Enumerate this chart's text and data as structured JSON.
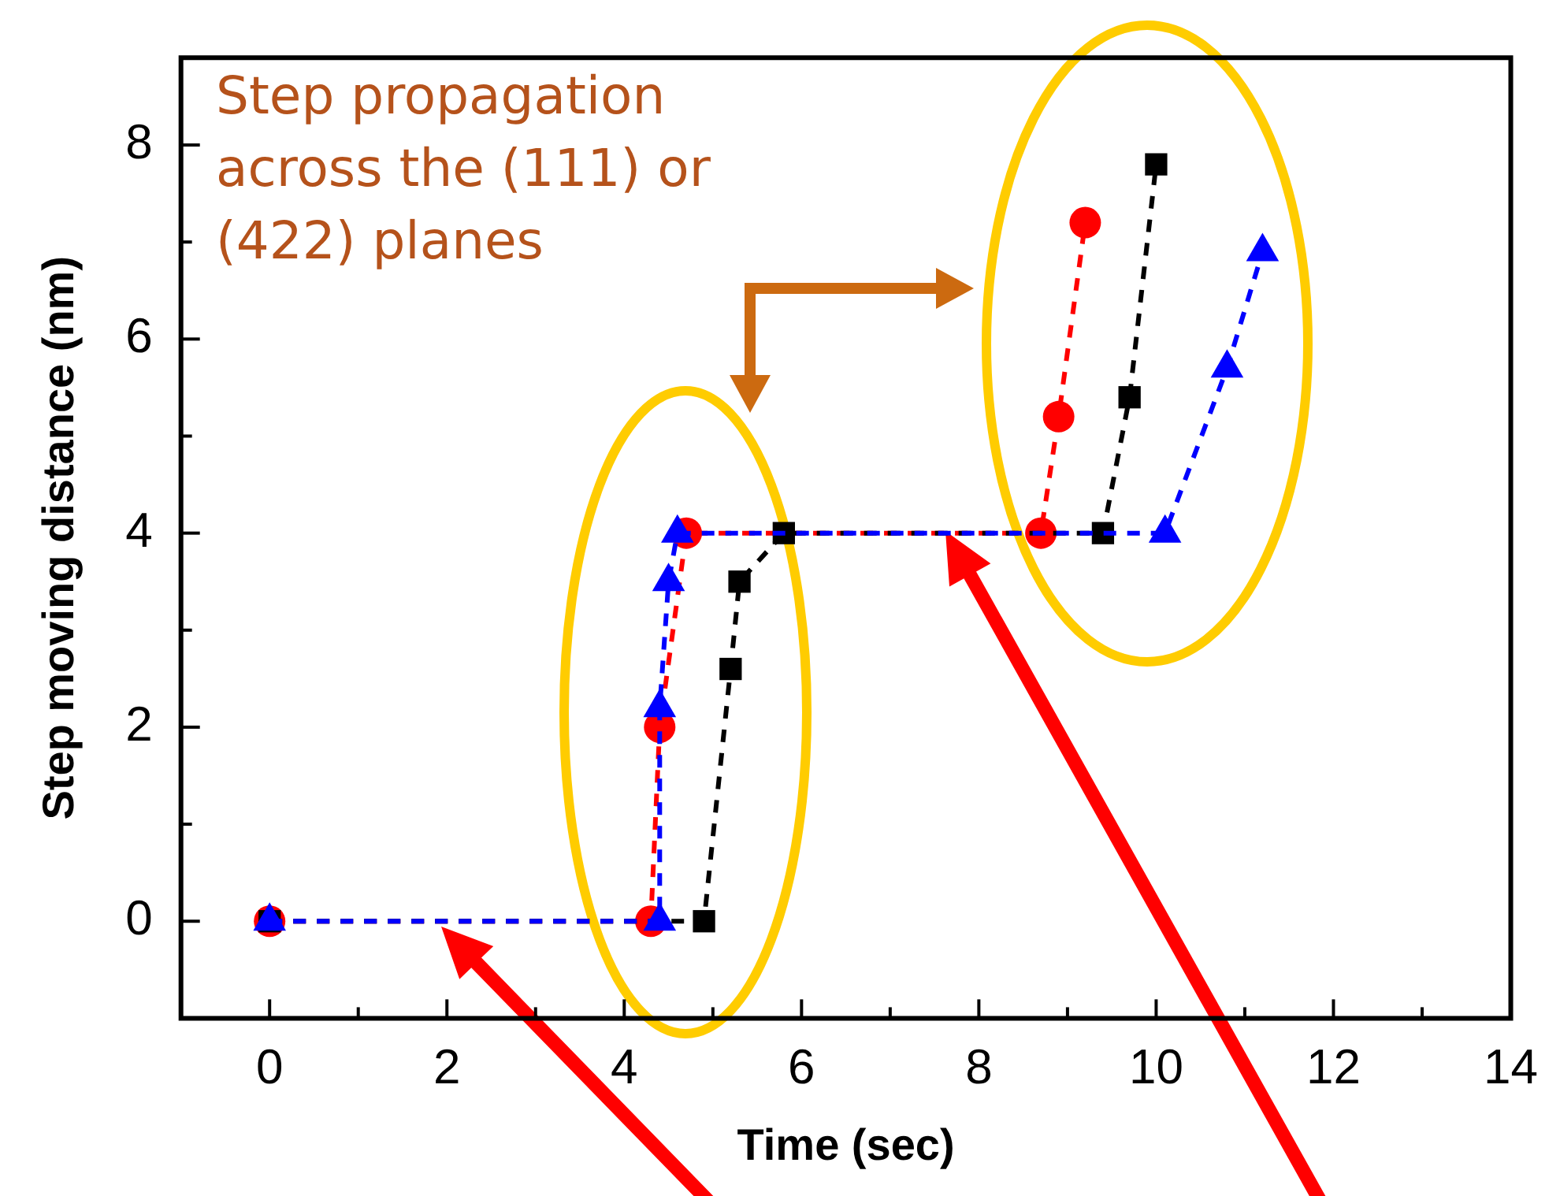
{
  "chart_data": {
    "type": "line",
    "xlabel": "Time (sec)",
    "ylabel": "Step moving distance (nm)",
    "annotations": [
      "Step propagation across the (111) or (422) planes"
    ],
    "xlim": [
      -1,
      14
    ],
    "xticks": [
      {
        "value": -1,
        "label": null
      },
      0,
      {
        "value": 1,
        "label": null
      },
      2,
      {
        "value": 3,
        "label": null
      },
      4,
      {
        "value": 5,
        "label": null
      },
      6,
      {
        "value": 7,
        "label": null
      },
      8,
      {
        "value": 9,
        "label": null
      },
      10,
      {
        "value": 11,
        "label": null
      },
      12,
      {
        "value": 13,
        "label": null
      },
      14
    ],
    "ylim": [
      -1,
      8.9
    ],
    "yticks": [
      {
        "value": -1,
        "label": null
      },
      0,
      {
        "value": 1,
        "label": null
      },
      2,
      {
        "value": 3,
        "label": null
      },
      4,
      {
        "value": 5,
        "label": null
      },
      6,
      {
        "value": 7,
        "label": null
      },
      8
    ],
    "line_style": "dashed",
    "legend": false,
    "series": [
      {
        "color": "#ff0000",
        "marker": "circle",
        "x": [
          0,
          4.3,
          4.4,
          4.7,
          8.7,
          8.9,
          9.2
        ],
        "values": [
          0,
          0,
          2,
          4,
          4,
          5.2,
          7.2
        ]
      },
      {
        "color": "#000000",
        "marker": "square",
        "x": [
          0,
          4.9,
          5.2,
          5.3,
          5.8,
          9.4,
          9.7,
          10.0
        ],
        "values": [
          0,
          0,
          2.6,
          3.5,
          4,
          4,
          5.4,
          7.8
        ]
      },
      {
        "color": "#0000ff",
        "marker": "triangle",
        "x": [
          0,
          4.4,
          4.4,
          4.5,
          4.6,
          10.1,
          10.8,
          11.2
        ],
        "values": [
          0,
          0,
          2.2,
          3.5,
          4,
          4,
          5.7,
          6.9
        ]
      }
    ]
  }
}
